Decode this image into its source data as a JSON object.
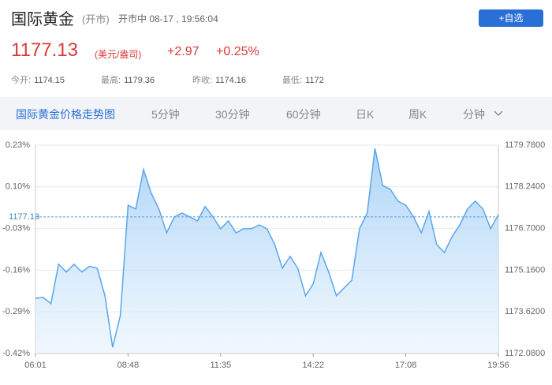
{
  "header": {
    "title": "国际黄金",
    "status": "(开市)",
    "session": "开市中 08-17 , 19:56:04",
    "button": "+自选"
  },
  "quote": {
    "price": "1177.13",
    "unit": "(美元/盎司)",
    "change": "+2.97",
    "change_pct": "+0.25%"
  },
  "stats": [
    {
      "label": "今开:",
      "value": "1174.15"
    },
    {
      "label": "最高:",
      "value": "1179.36"
    },
    {
      "label": "昨收:",
      "value": "1174.16"
    },
    {
      "label": "最低:",
      "value": "1172"
    }
  ],
  "tabs": [
    "国际黄金价格走势图",
    "5分钟",
    "30分钟",
    "60分钟",
    "日K",
    "周K",
    "分钟"
  ],
  "chart_data": {
    "type": "line",
    "categories": [
      "06:01",
      null,
      null,
      null,
      null,
      null,
      null,
      null,
      null,
      null,
      null,
      null,
      "08:48",
      null,
      null,
      null,
      null,
      null,
      null,
      null,
      null,
      null,
      null,
      null,
      "11:35",
      null,
      null,
      null,
      null,
      null,
      null,
      null,
      null,
      null,
      null,
      null,
      "14:22",
      null,
      null,
      null,
      null,
      null,
      null,
      null,
      null,
      null,
      null,
      null,
      "17:08",
      null,
      null,
      null,
      null,
      null,
      null,
      null,
      null,
      null,
      null,
      null,
      "19:56"
    ],
    "series": [
      {
        "color": "#5aa6ee",
        "axis": "y2",
        "values": [
          1174.12,
          1174.15,
          1173.92,
          1175.38,
          1175.09,
          1175.38,
          1175.09,
          1175.3,
          1175.23,
          1174.21,
          1172.31,
          1173.48,
          1177.56,
          1177.42,
          1178.88,
          1178.0,
          1177.42,
          1176.54,
          1177.13,
          1177.27,
          1177.13,
          1176.98,
          1177.51,
          1177.13,
          1176.69,
          1176.98,
          1176.54,
          1176.69,
          1176.69,
          1176.83,
          1176.69,
          1176.11,
          1175.23,
          1175.67,
          1175.23,
          1174.21,
          1174.65,
          1175.81,
          1175.09,
          1174.21,
          1174.5,
          1174.79,
          1176.69,
          1177.27,
          1179.66,
          1178.29,
          1178.15,
          1177.71,
          1177.56,
          1177.13,
          1176.54,
          1177.33,
          1176.11,
          1175.81,
          1176.4,
          1176.83,
          1177.42,
          1177.71,
          1177.42,
          1176.69,
          1177.22
        ]
      }
    ],
    "ylim": [
      -0.42,
      0.23
    ],
    "yticks": [
      {
        "value": 0.23,
        "label": "0.23%"
      },
      {
        "value": 0.1,
        "label": "0.10%"
      },
      {
        "value": -0.03,
        "label": "-0.03%"
      },
      {
        "value": -0.16,
        "label": "-0.16%"
      },
      {
        "value": -0.29,
        "label": "-0.29%"
      },
      {
        "value": -0.42,
        "label": "-0.42%"
      }
    ],
    "y2lim": [
      1172.08,
      1179.78
    ],
    "y2ticks": [
      {
        "value": 1179.78,
        "label": "1179.7800"
      },
      {
        "value": 1178.24,
        "label": "1178.2400"
      },
      {
        "value": 1176.7,
        "label": "1176.7000"
      },
      {
        "value": 1175.16,
        "label": "1175.1600"
      },
      {
        "value": 1173.62,
        "label": "1173.6200"
      },
      {
        "value": 1172.08,
        "label": "1172.0800"
      }
    ],
    "reference_value": 1177.13,
    "grid": true
  }
}
